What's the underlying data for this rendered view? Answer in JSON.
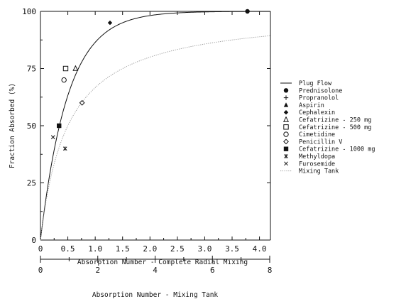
{
  "chart_data": {
    "type": "scatter",
    "ylabel": "Fraction Absorbed (%)",
    "xlabel": "Absorption Number - Complete Radial Mixing",
    "xlabel2": "Absorption Number - Mixing Tank",
    "xlim": [
      0,
      4.2
    ],
    "ylim": [
      0,
      100
    ],
    "x_ticks": [
      "0",
      "0.5",
      "1.0",
      "1.5",
      "2.0",
      "2.5",
      "3.0",
      "3.5",
      "4.0"
    ],
    "x_tick_values": [
      0,
      0.5,
      1.0,
      1.5,
      2.0,
      2.5,
      3.0,
      3.5,
      4.0
    ],
    "y_ticks": [
      "0",
      "25",
      "50",
      "75",
      "100"
    ],
    "y_tick_values": [
      0,
      25,
      50,
      75,
      100
    ],
    "x2lim": [
      0,
      8
    ],
    "x2_ticks": [
      "0",
      "2",
      "4",
      "6",
      "8"
    ],
    "x2_tick_values": [
      0,
      2,
      4,
      6,
      8
    ],
    "grid": false,
    "legend_position": "right",
    "series": [
      {
        "name": "Plug Flow",
        "kind": "line",
        "style": "solid",
        "formula": "1-exp(-2An)"
      },
      {
        "name": "Prednisolone",
        "marker": "filled-circle",
        "points": [
          [
            3.78,
            100
          ]
        ]
      },
      {
        "name": "Propranolol",
        "marker": "plus",
        "points": [
          [
            1.27,
            95
          ]
        ]
      },
      {
        "name": "Aspirin",
        "marker": "filled-triangle",
        "points": [
          [
            1.27,
            95
          ]
        ]
      },
      {
        "name": "Cephalexin",
        "marker": "filled-diamond",
        "points": [
          [
            1.27,
            95
          ]
        ]
      },
      {
        "name": "Cefatrizine - 250 mg",
        "marker": "open-triangle",
        "points": [
          [
            0.64,
            75
          ]
        ]
      },
      {
        "name": "Cefatrizine - 500 mg",
        "marker": "open-square",
        "points": [
          [
            0.46,
            75
          ]
        ]
      },
      {
        "name": "Cimetidine",
        "marker": "open-circle",
        "points": [
          [
            0.43,
            70
          ]
        ]
      },
      {
        "name": "Penicillin V",
        "marker": "open-diamond",
        "points": [
          [
            0.76,
            60
          ]
        ]
      },
      {
        "name": "Cefatrizine - 1000 mg",
        "marker": "filled-square",
        "points": [
          [
            0.34,
            50
          ]
        ]
      },
      {
        "name": "Methyldopa",
        "marker": "asterisk",
        "points": [
          [
            0.45,
            40
          ]
        ]
      },
      {
        "name": "Furosemide",
        "marker": "x-cross",
        "points": [
          [
            0.23,
            45
          ]
        ]
      },
      {
        "name": "Mixing Tank",
        "kind": "line",
        "style": "dotted",
        "formula": "2An/(1+2An)"
      }
    ]
  }
}
